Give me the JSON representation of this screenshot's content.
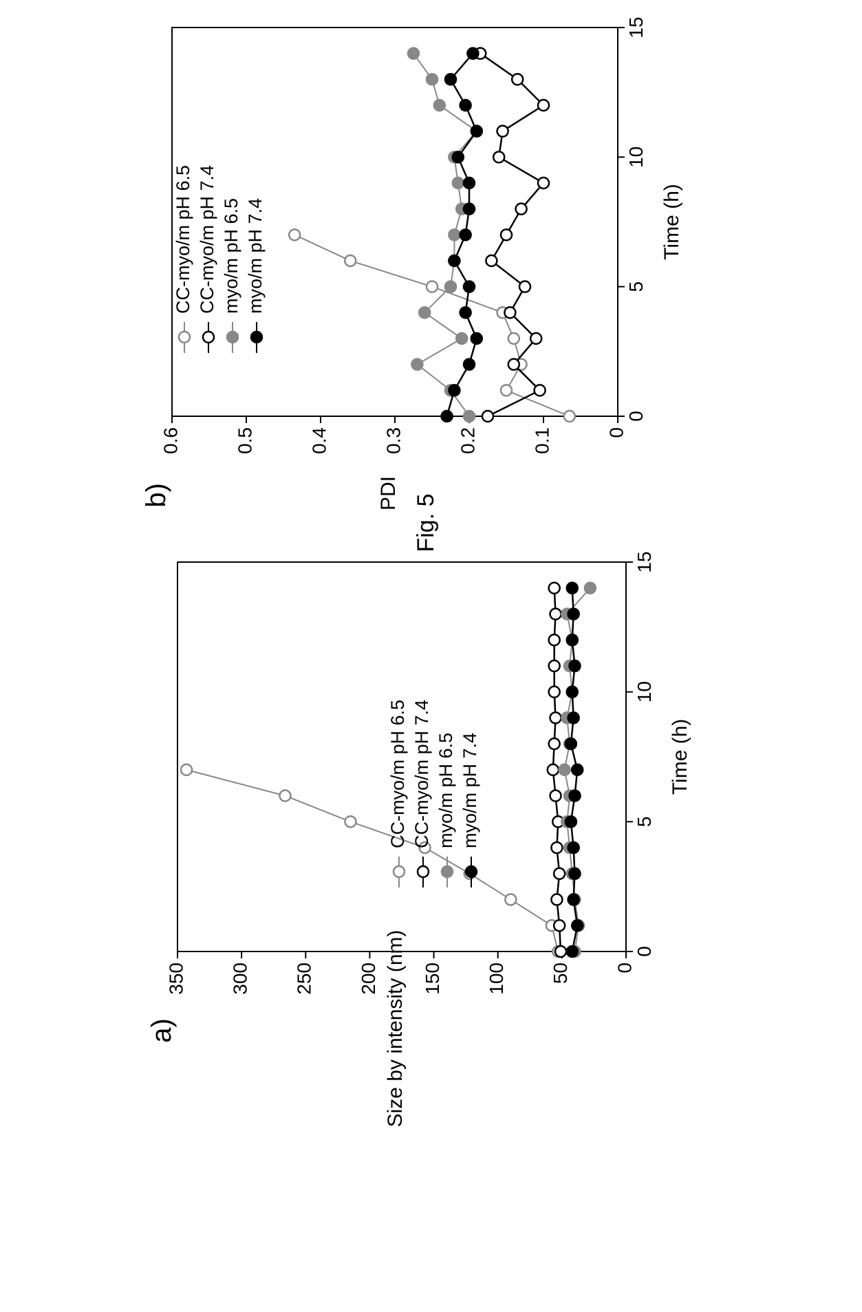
{
  "figure": {
    "title": "Fig. 5"
  },
  "chart_data": [
    {
      "panel_label": "a)",
      "type": "line",
      "xlabel": "Time (h)",
      "ylabel": "Size by intensity (nm)",
      "xlim": [
        0,
        15
      ],
      "ylim": [
        0,
        350
      ],
      "xticks": [
        0,
        5,
        10,
        15
      ],
      "yticks": [
        0,
        50,
        100,
        150,
        200,
        250,
        300,
        350
      ],
      "grid": false,
      "legend_position": "top-right",
      "series": [
        {
          "name": "CC-myo/m pH 6.5",
          "color": "#888888",
          "marker": "open",
          "x": [
            0,
            1,
            2,
            3,
            4,
            5,
            6,
            7
          ],
          "y": [
            53,
            58,
            90,
            122,
            157,
            215,
            266,
            343
          ]
        },
        {
          "name": "CC-myo/m pH 7.4",
          "color": "#000000",
          "marker": "open",
          "x": [
            0,
            1,
            2,
            3,
            4,
            5,
            6,
            7,
            8,
            9,
            10,
            11,
            12,
            13,
            14
          ],
          "y": [
            51,
            52,
            54,
            52,
            54,
            53,
            55,
            57,
            56,
            55,
            56,
            56,
            56,
            55,
            56
          ]
        },
        {
          "name": "myo/m pH 6.5",
          "color": "#888888",
          "marker": "filled",
          "x": [
            0,
            1,
            2,
            3,
            4,
            5,
            6,
            7,
            8,
            9,
            10,
            11,
            12,
            13,
            14
          ],
          "y": [
            40,
            37,
            40,
            42,
            44,
            46,
            44,
            48,
            44,
            46,
            42,
            44,
            42,
            46,
            28
          ]
        },
        {
          "name": "myo/m pH 7.4",
          "color": "#000000",
          "marker": "filled",
          "x": [
            0,
            1,
            2,
            3,
            4,
            5,
            6,
            7,
            8,
            9,
            10,
            11,
            12,
            13,
            14
          ],
          "y": [
            42,
            38,
            41,
            40,
            41,
            43,
            40,
            38,
            43,
            41,
            42,
            40,
            42,
            41,
            42
          ]
        }
      ]
    },
    {
      "panel_label": "b)",
      "type": "line",
      "xlabel": "Time (h)",
      "ylabel": "PDI",
      "xlim": [
        0,
        15
      ],
      "ylim": [
        0,
        0.6
      ],
      "xticks": [
        0,
        5,
        10,
        15
      ],
      "yticks": [
        0,
        0.1,
        0.2,
        0.3,
        0.4,
        0.5,
        0.6
      ],
      "grid": false,
      "legend_position": "top-left",
      "series": [
        {
          "name": "CC-myo/m pH 6.5",
          "color": "#888888",
          "marker": "open",
          "x": [
            0,
            1,
            2,
            3,
            4,
            5,
            6,
            7
          ],
          "y": [
            0.065,
            0.15,
            0.13,
            0.14,
            0.155,
            0.25,
            0.36,
            0.435
          ]
        },
        {
          "name": "CC-myo/m pH 7.4",
          "color": "#000000",
          "marker": "open",
          "x": [
            0,
            1,
            2,
            3,
            4,
            5,
            6,
            7,
            8,
            9,
            10,
            11,
            12,
            13,
            14
          ],
          "y": [
            0.175,
            0.105,
            0.14,
            0.11,
            0.145,
            0.125,
            0.17,
            0.15,
            0.13,
            0.1,
            0.16,
            0.155,
            0.1,
            0.135,
            0.185
          ]
        },
        {
          "name": "myo/m pH 6.5",
          "color": "#888888",
          "marker": "filled",
          "x": [
            0,
            1,
            2,
            3,
            4,
            5,
            6,
            7,
            8,
            9,
            10,
            11,
            12,
            13,
            14
          ],
          "y": [
            0.2,
            0.225,
            0.27,
            0.21,
            0.26,
            0.225,
            0.22,
            0.22,
            0.21,
            0.215,
            0.22,
            0.19,
            0.24,
            0.25,
            0.275
          ]
        },
        {
          "name": "myo/m pH 7.4",
          "color": "#000000",
          "marker": "filled",
          "x": [
            0,
            1,
            2,
            3,
            4,
            5,
            6,
            7,
            8,
            9,
            10,
            11,
            12,
            13,
            14
          ],
          "y": [
            0.23,
            0.22,
            0.2,
            0.19,
            0.205,
            0.2,
            0.22,
            0.205,
            0.2,
            0.2,
            0.215,
            0.19,
            0.205,
            0.225,
            0.195
          ]
        }
      ]
    }
  ]
}
